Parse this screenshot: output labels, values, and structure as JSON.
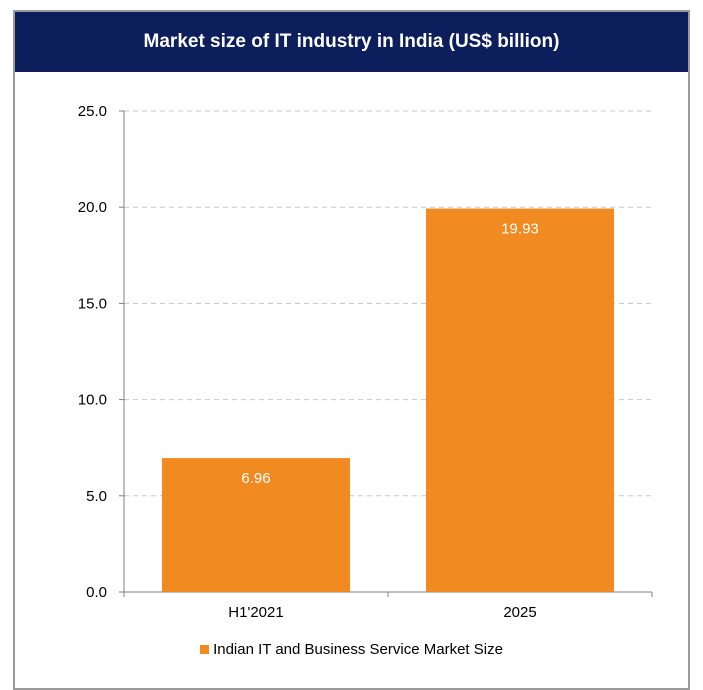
{
  "chart_data": {
    "type": "bar",
    "title": "Market size of IT industry in India (US$ billion)",
    "categories": [
      "H1'2021",
      "2025"
    ],
    "series": [
      {
        "name": "Indian IT and Business Service Market Size",
        "values": [
          6.96,
          19.93
        ]
      }
    ],
    "data_labels": [
      "6.96",
      "19.93"
    ],
    "y_ticks": [
      "0.0",
      "5.0",
      "10.0",
      "15.0",
      "20.0",
      "25.0"
    ],
    "ylim": [
      0,
      25
    ],
    "grid": true,
    "legend_position": "bottom",
    "colors": {
      "bar": "#f18a21",
      "header": "#0c1e5b",
      "grid": "#c8c8c8"
    }
  }
}
